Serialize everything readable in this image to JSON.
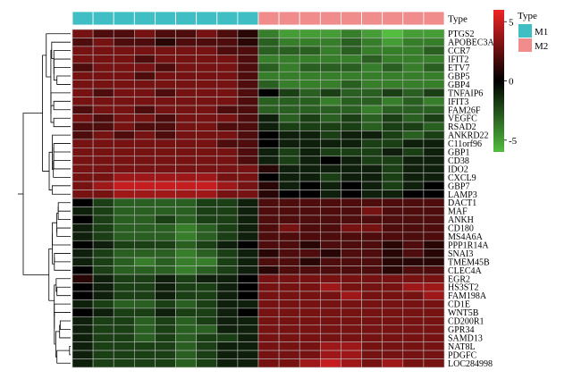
{
  "chart_data": {
    "type": "heatmap",
    "annotation_title": "Type",
    "legend_title": "Type",
    "groups": [
      {
        "label": "M1",
        "color": "#3fbfc4"
      },
      {
        "label": "M2",
        "color": "#f08c8c"
      }
    ],
    "column_groups": [
      "M1",
      "M1",
      "M1",
      "M1",
      "M1",
      "M1",
      "M1",
      "M1",
      "M1",
      "M2",
      "M2",
      "M2",
      "M2",
      "M2",
      "M2",
      "M2",
      "M2",
      "M2"
    ],
    "color_scale": {
      "min": -6,
      "max": 6,
      "low": "#52bd3f",
      "mid": "#000000",
      "high": "#ee2426",
      "ticks": [
        {
          "value": 5,
          "label": "5"
        },
        {
          "value": 0,
          "label": "0"
        },
        {
          "value": -5,
          "label": "-5"
        }
      ]
    },
    "rows": [
      "PTGS2",
      "APOBEC3A",
      "CCR7",
      "IFIT2",
      "ETV7",
      "GBP5",
      "GBP4",
      "TNFAIP6",
      "IFIT3",
      "FAM26F",
      "VEGFC",
      "RSAD2",
      "ANKRD22",
      "C11orf96",
      "GBP1",
      "CD38",
      "IDO2",
      "CXCL9",
      "GBP7",
      "LAMP3",
      "DACT1",
      "MAF",
      "ANKH",
      "CD180",
      "MS4A6A",
      "PPP1R14A",
      "SNAI3",
      "TMEM45B",
      "CLEC4A",
      "EGR2",
      "HS3ST2",
      "FAM198A",
      "CD1E",
      "WNT5B",
      "CD200R1",
      "GPR34",
      "SAMD13",
      "NAT8L",
      "PDGFC",
      "LOC284998"
    ],
    "values": [
      [
        3,
        2,
        2,
        3,
        2,
        2,
        3,
        2,
        1,
        -4,
        -5,
        -5,
        -5,
        -4,
        -5,
        -6,
        -5,
        -5
      ],
      [
        2,
        3,
        2,
        2,
        1,
        2,
        2,
        2,
        1,
        -3,
        -4,
        -4,
        -4,
        -3,
        -4,
        -5,
        -4,
        -4
      ],
      [
        3,
        3,
        3,
        3,
        3,
        3,
        3,
        2,
        2,
        -3,
        -3,
        -3,
        -4,
        -3,
        -4,
        -4,
        -4,
        -3
      ],
      [
        3,
        3,
        3,
        2,
        3,
        3,
        3,
        3,
        2,
        -4,
        -4,
        -4,
        -4,
        -4,
        -3,
        -4,
        -4,
        -4
      ],
      [
        2,
        3,
        3,
        3,
        2,
        3,
        3,
        3,
        2,
        -3,
        -4,
        -3,
        -3,
        -3,
        -4,
        -3,
        -4,
        -3
      ],
      [
        3,
        3,
        3,
        2,
        3,
        3,
        3,
        3,
        2,
        -4,
        -4,
        -4,
        -4,
        -4,
        -4,
        -4,
        -4,
        -4
      ],
      [
        3,
        3,
        3,
        3,
        3,
        3,
        3,
        3,
        2,
        -3,
        -4,
        -4,
        -4,
        -3,
        -4,
        -4,
        -4,
        -4
      ],
      [
        3,
        2,
        3,
        3,
        2,
        3,
        3,
        3,
        2,
        0,
        -2,
        -3,
        -2,
        -3,
        -3,
        -2,
        -3,
        -2
      ],
      [
        3,
        3,
        3,
        3,
        3,
        3,
        3,
        3,
        2,
        -3,
        -3,
        -3,
        -4,
        -3,
        -3,
        -4,
        -3,
        -4
      ],
      [
        2,
        3,
        3,
        2,
        3,
        3,
        3,
        2,
        2,
        -3,
        -3,
        -3,
        -3,
        -3,
        -4,
        -3,
        -3,
        -3
      ],
      [
        3,
        2,
        3,
        3,
        2,
        3,
        3,
        3,
        2,
        -1,
        -3,
        -2,
        -3,
        -2,
        -3,
        -2,
        -3,
        -2
      ],
      [
        2,
        2,
        3,
        2,
        2,
        3,
        3,
        2,
        2,
        -1,
        -2,
        -2,
        -2,
        -2,
        -3,
        -2,
        -2,
        -3
      ],
      [
        2,
        3,
        2,
        3,
        2,
        3,
        3,
        3,
        2,
        0,
        -1,
        -1,
        -2,
        -1,
        -1,
        -2,
        -3,
        -2
      ],
      [
        3,
        3,
        3,
        3,
        3,
        3,
        3,
        2,
        2,
        0,
        -1,
        -1,
        -1,
        -1,
        -2,
        -2,
        -1,
        -1
      ],
      [
        3,
        3,
        3,
        3,
        3,
        3,
        3,
        3,
        2,
        -1,
        -2,
        -1,
        -2,
        -2,
        -2,
        -1,
        -2,
        -1
      ],
      [
        3,
        3,
        3,
        3,
        3,
        3,
        3,
        3,
        2,
        -1,
        -2,
        -1,
        0,
        -1,
        -2,
        -2,
        -1,
        -1
      ],
      [
        3,
        3,
        3,
        3,
        3,
        3,
        3,
        3,
        3,
        1,
        -1,
        -1,
        -1,
        -1,
        -1,
        -2,
        -1,
        -1
      ],
      [
        3,
        3,
        4,
        4,
        4,
        4,
        4,
        3,
        3,
        0,
        -1,
        -1,
        -2,
        -1,
        -1,
        -2,
        -1,
        -1
      ],
      [
        3,
        4,
        5,
        5,
        5,
        5,
        5,
        4,
        3,
        1,
        -1,
        0,
        -1,
        0,
        -1,
        -2,
        -1,
        0
      ],
      [
        3,
        3,
        4,
        4,
        4,
        4,
        4,
        3,
        3,
        1,
        0,
        0,
        -1,
        0,
        -1,
        -1,
        0,
        0
      ],
      [
        0,
        -2,
        -3,
        -3,
        -3,
        -3,
        -2,
        -2,
        -1,
        2,
        2,
        2,
        2,
        2,
        2,
        2,
        2,
        2
      ],
      [
        -1,
        -2,
        -3,
        -3,
        -3,
        -3,
        -2,
        -2,
        -1,
        2,
        2,
        2,
        2,
        2,
        3,
        2,
        2,
        2
      ],
      [
        0,
        -2,
        -3,
        -3,
        -2,
        -3,
        -2,
        -2,
        -1,
        2,
        2,
        2,
        2,
        2,
        2,
        2,
        2,
        2
      ],
      [
        -1,
        -2,
        -3,
        -3,
        -3,
        -4,
        -3,
        -2,
        -1,
        2,
        3,
        2,
        2,
        3,
        3,
        2,
        2,
        2
      ],
      [
        -1,
        -2,
        -3,
        -3,
        -3,
        -4,
        -3,
        -2,
        -1,
        2,
        2,
        2,
        2,
        2,
        2,
        2,
        2,
        2
      ],
      [
        0,
        -1,
        -2,
        -2,
        -2,
        -3,
        -2,
        -1,
        0,
        2,
        2,
        1,
        2,
        2,
        2,
        1,
        2,
        1
      ],
      [
        -1,
        -2,
        -3,
        -3,
        -3,
        -4,
        -3,
        -2,
        -1,
        1,
        2,
        2,
        1,
        2,
        2,
        1,
        2,
        1
      ],
      [
        -1,
        -2,
        -3,
        -4,
        -3,
        -4,
        -4,
        -2,
        -1,
        2,
        2,
        1,
        2,
        2,
        2,
        1,
        1,
        1
      ],
      [
        0,
        -2,
        -3,
        -3,
        -3,
        -4,
        -3,
        -2,
        -1,
        1,
        2,
        2,
        2,
        2,
        2,
        1,
        2,
        2
      ],
      [
        1,
        -1,
        -2,
        -2,
        -1,
        -2,
        -1,
        -1,
        0,
        3,
        3,
        3,
        3,
        3,
        3,
        3,
        3,
        3
      ],
      [
        0,
        -1,
        -2,
        -2,
        -1,
        -2,
        -2,
        -1,
        0,
        3,
        3,
        3,
        4,
        3,
        3,
        3,
        4,
        4
      ],
      [
        0,
        -1,
        -2,
        -2,
        -1,
        -2,
        -2,
        -1,
        0,
        3,
        3,
        3,
        3,
        4,
        3,
        3,
        3,
        4
      ],
      [
        -1,
        -2,
        -3,
        -3,
        -2,
        -3,
        -2,
        -1,
        -1,
        3,
        3,
        3,
        3,
        3,
        3,
        3,
        3,
        3
      ],
      [
        0,
        -1,
        -2,
        -2,
        -1,
        -2,
        -2,
        -1,
        0,
        3,
        3,
        3,
        3,
        3,
        3,
        3,
        3,
        3
      ],
      [
        -1,
        -2,
        -2,
        -3,
        -2,
        -3,
        -2,
        -1,
        -1,
        3,
        3,
        3,
        3,
        3,
        3,
        3,
        3,
        3
      ],
      [
        -1,
        -2,
        -2,
        -3,
        -2,
        -3,
        -3,
        -1,
        -1,
        3,
        3,
        3,
        3,
        3,
        3,
        3,
        3,
        3
      ],
      [
        -1,
        -2,
        -2,
        -3,
        -2,
        -3,
        -2,
        -2,
        -1,
        3,
        3,
        3,
        3,
        3,
        3,
        3,
        3,
        3
      ],
      [
        -1,
        -2,
        -2,
        -2,
        -2,
        -3,
        -2,
        -1,
        -1,
        3,
        3,
        3,
        4,
        4,
        3,
        3,
        3,
        3
      ],
      [
        -1,
        -2,
        -2,
        -2,
        -2,
        -3,
        -2,
        -1,
        -1,
        3,
        3,
        3,
        4,
        4,
        3,
        3,
        3,
        3
      ],
      [
        -1,
        -2,
        -2,
        -2,
        -2,
        -3,
        -2,
        -1,
        -1,
        3,
        3,
        4,
        5,
        4,
        3,
        4,
        3,
        3
      ]
    ]
  }
}
